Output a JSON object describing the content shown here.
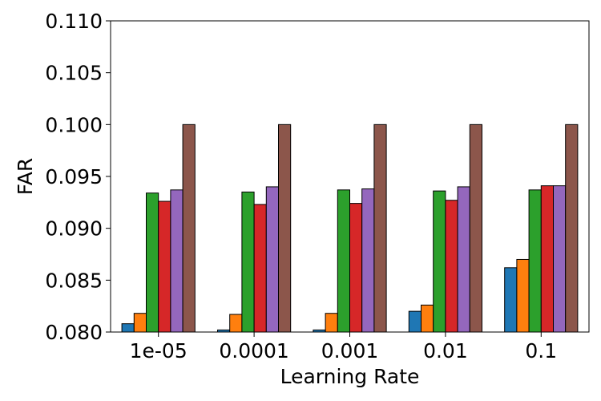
{
  "chart_data": {
    "type": "bar",
    "title": "",
    "xlabel": "Learning Rate",
    "ylabel": "FAR",
    "categories": [
      "1e-05",
      "0.0001",
      "0.001",
      "0.01",
      "0.1"
    ],
    "ylim": [
      0.08,
      0.11
    ],
    "yticks": [
      "0.080",
      "0.085",
      "0.090",
      "0.095",
      "0.100",
      "0.105",
      "0.110"
    ],
    "grid": false,
    "legend": "none",
    "series": [
      {
        "color": "#1f77b4",
        "values": [
          0.0808,
          0.0802,
          0.0802,
          0.082,
          0.0862
        ]
      },
      {
        "color": "#ff7f0e",
        "values": [
          0.0818,
          0.0817,
          0.0818,
          0.0826,
          0.087
        ]
      },
      {
        "color": "#2ca02c",
        "values": [
          0.0934,
          0.0935,
          0.0937,
          0.0936,
          0.0937
        ]
      },
      {
        "color": "#d62728",
        "values": [
          0.0926,
          0.0923,
          0.0924,
          0.0927,
          0.0941
        ]
      },
      {
        "color": "#9467bd",
        "values": [
          0.0937,
          0.094,
          0.0938,
          0.094,
          0.0941
        ]
      },
      {
        "color": "#8c564b",
        "values": [
          0.1,
          0.1,
          0.1,
          0.1,
          0.1
        ]
      }
    ]
  }
}
